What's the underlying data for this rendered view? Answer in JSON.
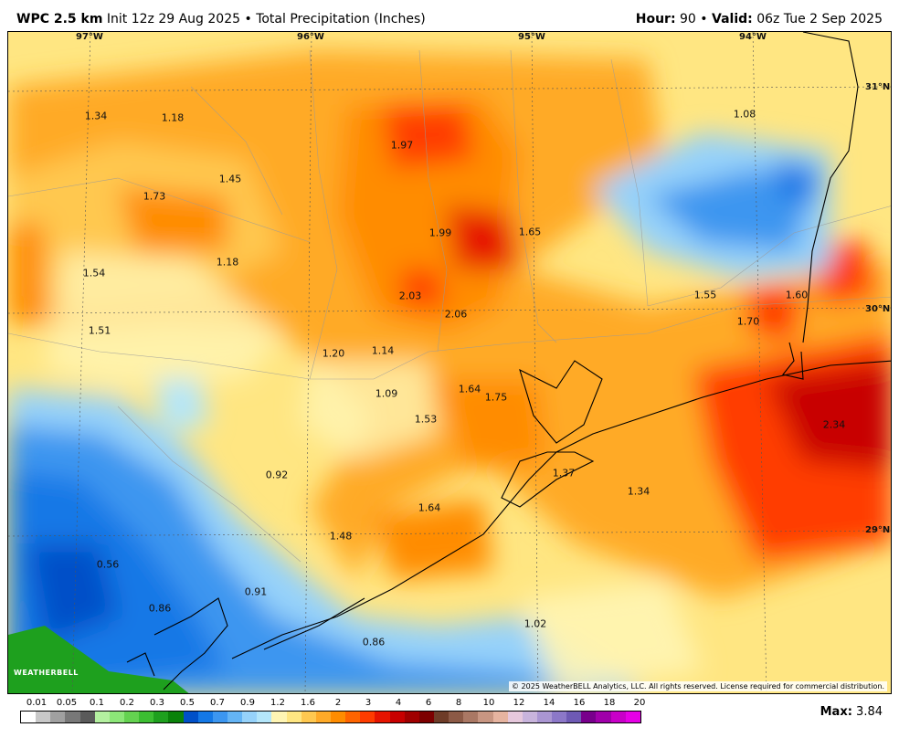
{
  "header": {
    "model": "WPC 2.5 km",
    "init": "Init 12z 29 Aug 2025",
    "sep": "•",
    "product": "Total Precipitation (Inches)",
    "hour_label": "Hour:",
    "hour_value": "90",
    "valid_label": "Valid:",
    "valid_value": "06z Tue 2 Sep 2025"
  },
  "map": {
    "lon_labels": [
      "97°W",
      "96°W",
      "95°W",
      "94°W"
    ],
    "lat_labels": [
      "31°N",
      "30°N",
      "29°N"
    ],
    "values": [
      "1.34",
      "1.18",
      "1.97",
      "1.08",
      "1.73",
      "1.45",
      "1.99",
      "1.65",
      "1.54",
      "1.18",
      "2.03",
      "2.06",
      "1.55",
      "1.60",
      "1.70",
      "1.51",
      "1.20",
      "1.14",
      "1.09",
      "1.64",
      "1.75",
      "1.53",
      "2.34",
      "0.92",
      "1.37",
      "1.34",
      "1.64",
      "1.48",
      "0.56",
      "0.91",
      "0.86",
      "1.02",
      "0.86"
    ],
    "copyright": "© 2025 WeatherBELL Analytics, LLC. All rights reserved. License required for commercial distribution.",
    "logo_text": "WEATHERBELL"
  },
  "legend": {
    "ticks": [
      "0.01",
      "0.05",
      "0.1",
      "0.2",
      "0.3",
      "0.5",
      "0.7",
      "0.9",
      "1.2",
      "1.6",
      "2",
      "3",
      "4",
      "6",
      "8",
      "10",
      "12",
      "14",
      "16",
      "18",
      "20"
    ],
    "colors": [
      "#ffffff",
      "#c8c8c8",
      "#a0a0a0",
      "#787878",
      "#5a5a5a",
      "#b4f0a0",
      "#8ce678",
      "#64d250",
      "#3cbe32",
      "#1ea01e",
      "#0a820a",
      "#0050c8",
      "#1478e6",
      "#3c96f0",
      "#64b4f5",
      "#96d2fa",
      "#b4e6fa",
      "#fff5b4",
      "#ffe682",
      "#ffc850",
      "#ffaa28",
      "#ff8c00",
      "#ff6400",
      "#ff3c00",
      "#e61400",
      "#c80000",
      "#a00000",
      "#7d0000",
      "#6e3c28",
      "#8c5a46",
      "#aa7864",
      "#c89682",
      "#e6b4a0",
      "#e6c8dc",
      "#c8b4dc",
      "#aa96d2",
      "#8c78c8",
      "#6e5ab4",
      "#78008c",
      "#a000aa",
      "#c800c8",
      "#e600e6"
    ],
    "max_label": "Max:",
    "max_value": "3.84"
  }
}
